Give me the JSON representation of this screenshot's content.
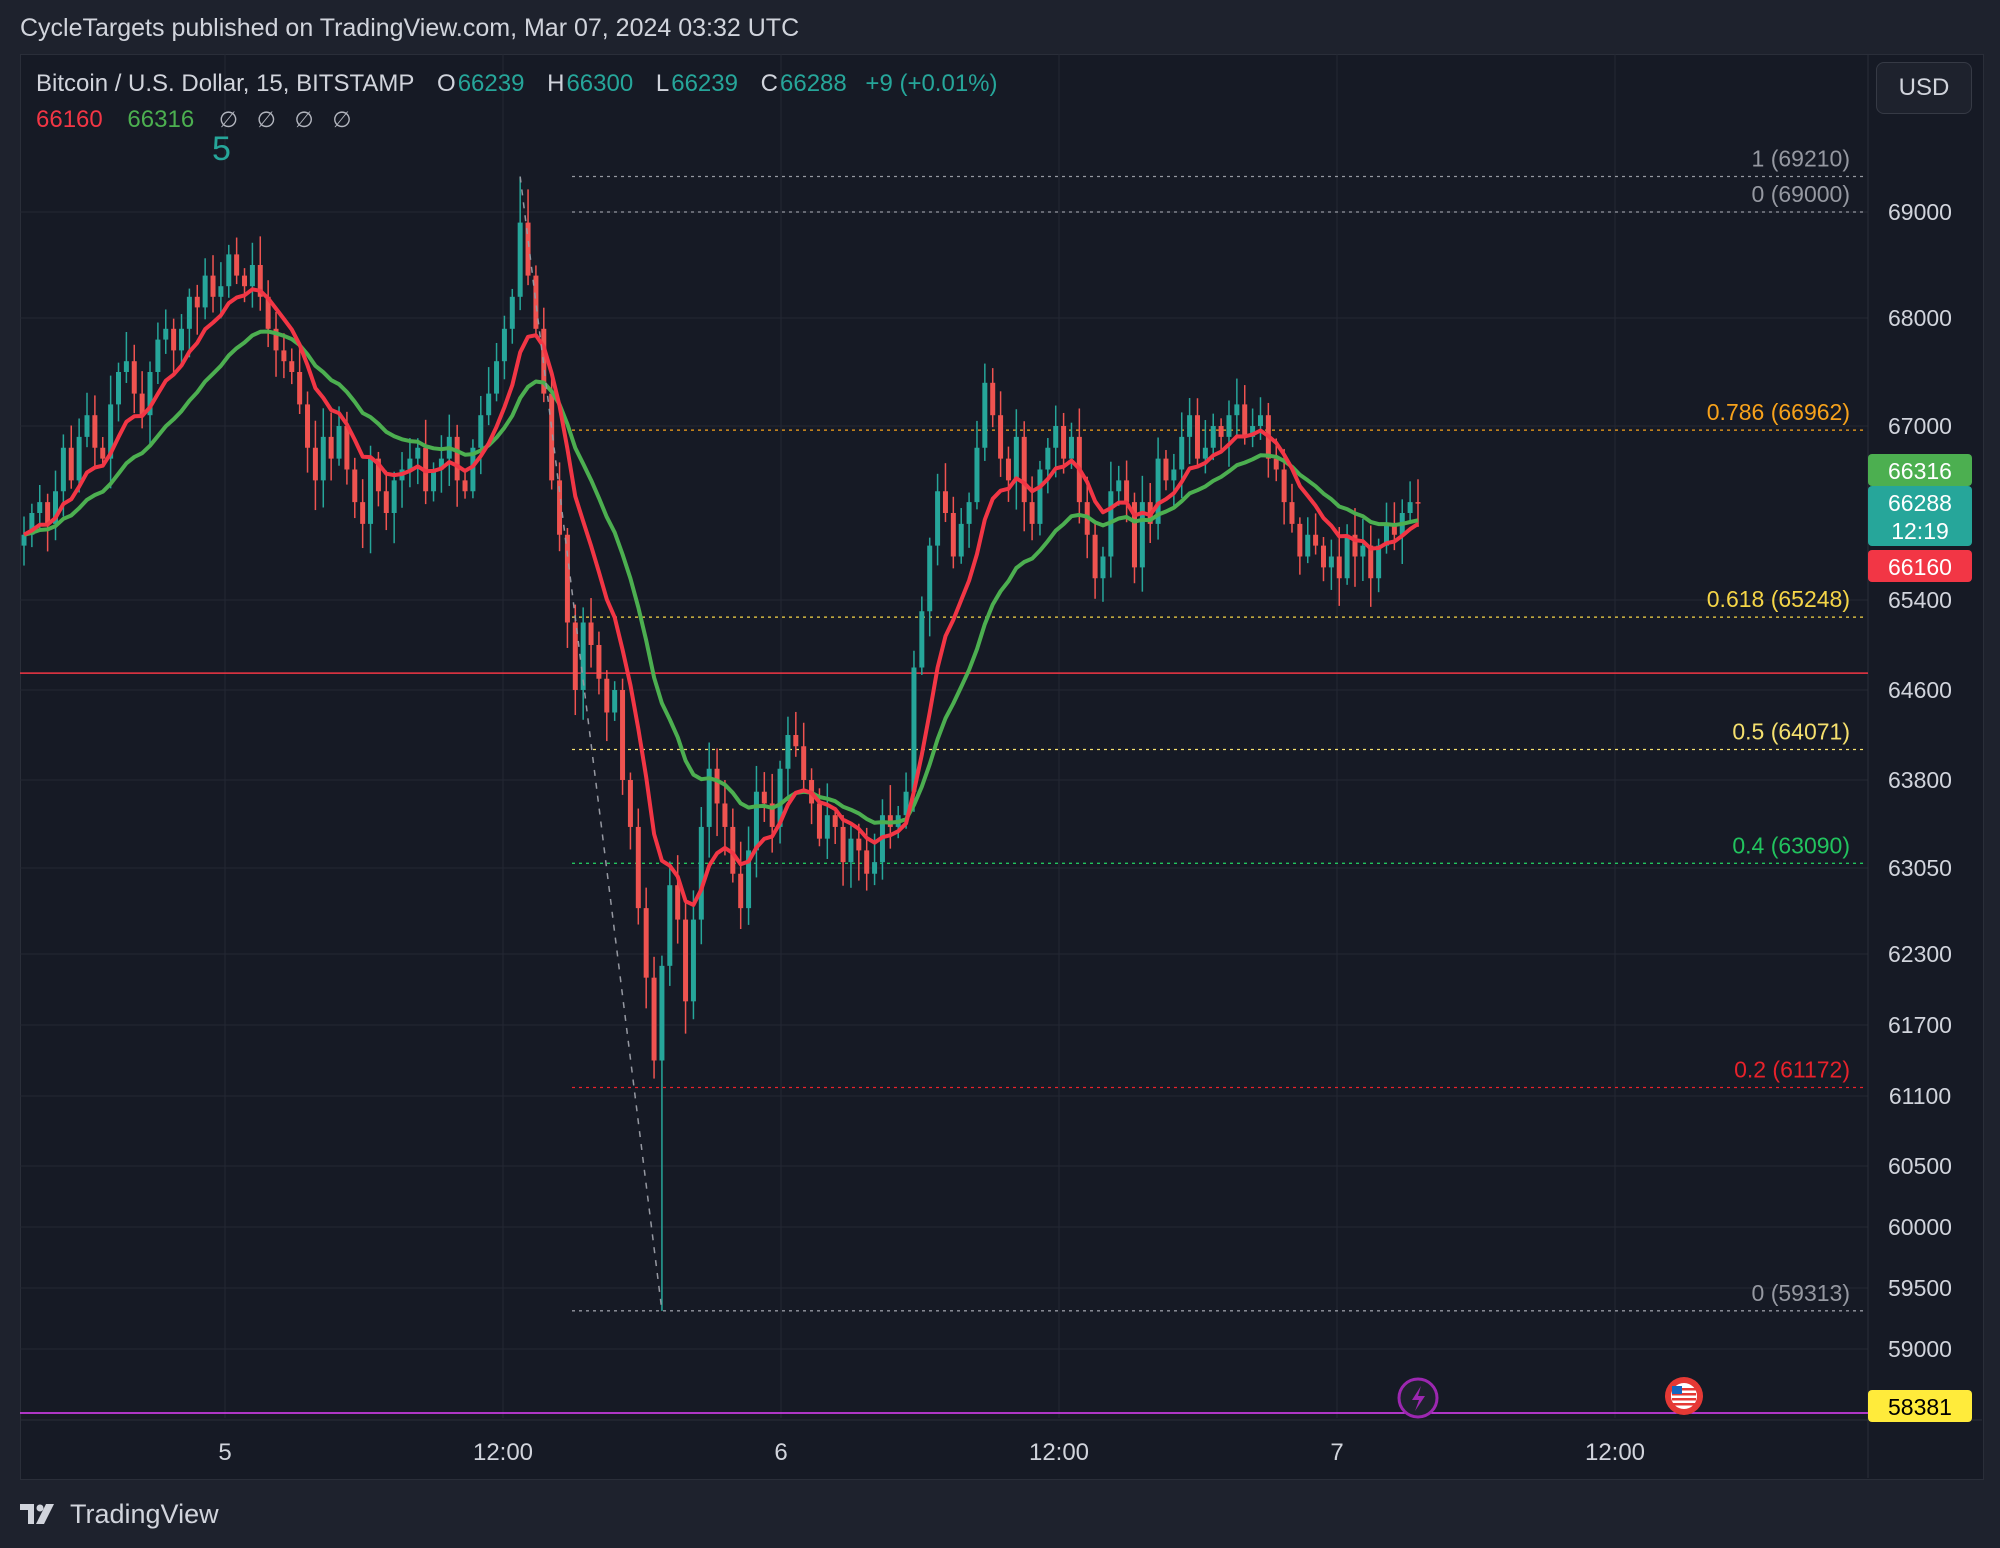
{
  "header": {
    "publish_text": "CycleTargets published on TradingView.com, Mar 07, 2024 03:32 UTC"
  },
  "legend": {
    "symbol": "Bitcoin / U.S. Dollar, 15, BITSTAMP",
    "o_label": "O",
    "o_value": "66239",
    "h_label": "H",
    "h_value": "66300",
    "l_label": "L",
    "l_value": "66239",
    "c_label": "C",
    "c_value": "66288",
    "change": "+9 (+0.01%)",
    "ema_fast": "66160",
    "ema_slow": "66316",
    "na_1": "∅",
    "na_2": "∅",
    "na_3": "∅",
    "na_4": "∅",
    "wave_count": "5"
  },
  "currency_button": "USD",
  "footer": {
    "brand": "TradingView"
  },
  "colors": {
    "up": "#26a69a",
    "down": "#ef5350",
    "ema_fast": "#f23645",
    "ema_slow": "#4caf50",
    "grid": "#242833",
    "background": "#161a25"
  },
  "chart_data": {
    "type": "candlestick",
    "symbol": "BTCUSD",
    "interval": "15",
    "x_ticks": [
      "5",
      "12:00",
      "6",
      "12:00",
      "7",
      "12:00"
    ],
    "y_ticks": [
      69000,
      68000,
      67000,
      65400,
      64600,
      63800,
      63050,
      62300,
      61700,
      61100,
      60500,
      60000,
      59500,
      59000
    ],
    "y_range": [
      58400,
      69900
    ],
    "price_labels": {
      "ema_slow": "66316",
      "last_price": "66288",
      "countdown": "12:19",
      "ema_fast": "66160",
      "bottom_marker": "58381"
    },
    "fib_levels": [
      {
        "label": "1 (69210)",
        "price": 69210,
        "color": "#9598a1"
      },
      {
        "label": "0 (69000)",
        "price": 69000,
        "color": "#9598a1"
      },
      {
        "label": "0.786 (66962)",
        "price": 66962,
        "color": "#f7a21b"
      },
      {
        "label": "0.618 (65248)",
        "price": 65248,
        "color": "#f5d547"
      },
      {
        "label": "0.5 (64071)",
        "price": 64071,
        "color": "#f5e06e"
      },
      {
        "label": "0.4 (63090)",
        "price": 63090,
        "color": "#22c35e"
      },
      {
        "label": "0.2 (61172)",
        "price": 61172,
        "color": "#e8222b"
      },
      {
        "label": "0 (59313)",
        "price": 59313,
        "color": "#9598a1"
      }
    ],
    "horizontal_lines": [
      {
        "price": 64750,
        "color": "#f23645"
      },
      {
        "price": 58381,
        "color": "#e040fb"
      }
    ],
    "close_series": [
      66000,
      66200,
      66300,
      66100,
      66400,
      66800,
      66500,
      66900,
      67100,
      66800,
      66700,
      67200,
      67500,
      67600,
      67300,
      67100,
      67500,
      67800,
      67900,
      67700,
      67900,
      68200,
      68100,
      68400,
      68200,
      68300,
      68600,
      68400,
      68300,
      68500,
      68200,
      67900,
      67700,
      67600,
      67500,
      67200,
      66800,
      66500,
      66900,
      66700,
      67000,
      66600,
      66300,
      66100,
      66700,
      66400,
      66200,
      66500,
      66600,
      66700,
      66800,
      66400,
      66600,
      66700,
      66900,
      66500,
      66400,
      66800,
      67100,
      67300,
      67600,
      67900,
      68200,
      68900,
      68400,
      67900,
      67300,
      66500,
      66000,
      65200,
      64600,
      65200,
      65000,
      64700,
      64400,
      64600,
      63800,
      63400,
      62700,
      62100,
      61400,
      62200,
      62900,
      62600,
      61900,
      62600,
      63400,
      63900,
      63600,
      63400,
      63000,
      62700,
      63200,
      63700,
      63600,
      63400,
      63900,
      64200,
      64100,
      63800,
      63600,
      63300,
      63500,
      63400,
      63100,
      63300,
      63200,
      63000,
      63100,
      63500,
      63400,
      63500,
      63700,
      64800,
      65300,
      65900,
      66400,
      66200,
      65800,
      66100,
      66300,
      66800,
      67400,
      67100,
      66700,
      66500,
      66900,
      66300,
      66100,
      66600,
      66800,
      67000,
      66700,
      66900,
      66300,
      66000,
      65600,
      65800,
      66400,
      66500,
      66300,
      65700,
      66300,
      66100,
      66700,
      66500,
      66600,
      66900,
      67100,
      66700,
      66800,
      67000,
      66900,
      67100,
      67200,
      66900,
      67000,
      67100,
      66700,
      66600,
      66300,
      66100,
      65800,
      66000,
      65900,
      65700,
      65800,
      65600,
      66000,
      65800,
      65900,
      65600,
      65900,
      66100,
      66000,
      66200,
      66300,
      66288
    ],
    "low_point": 59313,
    "high_point": 69210
  }
}
